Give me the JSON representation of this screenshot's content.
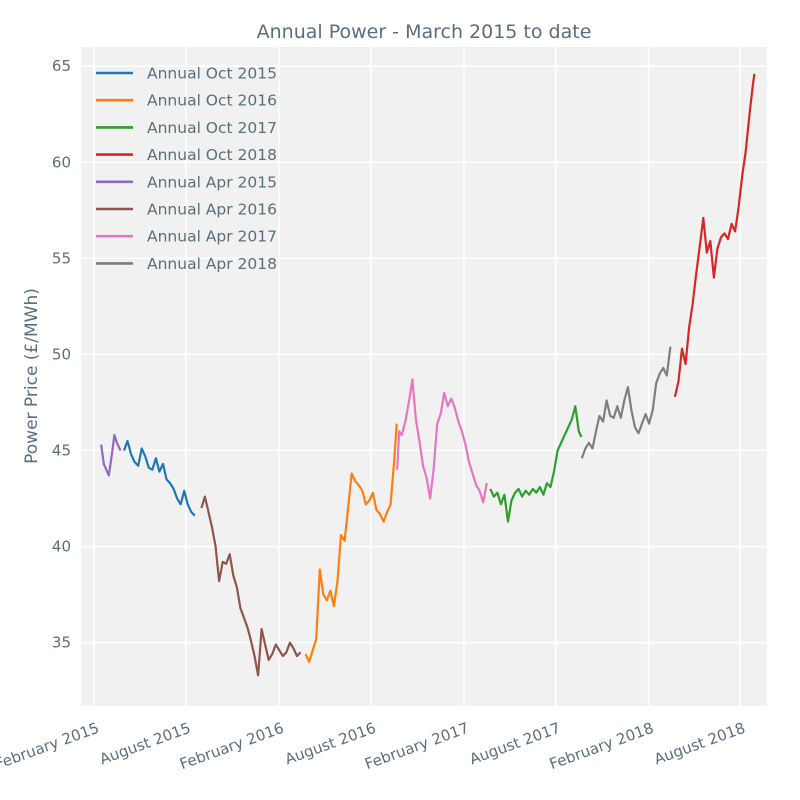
{
  "chart_data": {
    "type": "line",
    "title": "Annual Power - March 2015 to date",
    "xlabel": "",
    "ylabel": "Power Price (£/MWh)",
    "xlim": [
      "2015-01-06",
      "2018-09-23"
    ],
    "ylim": [
      31.7,
      66.0
    ],
    "x_ticks": [
      {
        "date": "2015-02-01",
        "label": "February 2015"
      },
      {
        "date": "2015-08-01",
        "label": "August 2015"
      },
      {
        "date": "2016-02-01",
        "label": "February 2016"
      },
      {
        "date": "2016-08-01",
        "label": "August 2016"
      },
      {
        "date": "2017-02-01",
        "label": "February 2017"
      },
      {
        "date": "2017-08-01",
        "label": "August 2017"
      },
      {
        "date": "2018-02-01",
        "label": "February 2018"
      },
      {
        "date": "2018-08-01",
        "label": "August 2018"
      }
    ],
    "y_ticks": [
      35,
      40,
      45,
      50,
      55,
      60,
      65
    ],
    "grid": true,
    "legend": "top-left",
    "series": [
      {
        "name": "Annual Oct 2015",
        "color": "#1f77b4",
        "points": [
          [
            "2015-04-01",
            45.0
          ],
          [
            "2015-04-08",
            45.5
          ],
          [
            "2015-04-15",
            44.8
          ],
          [
            "2015-04-22",
            44.4
          ],
          [
            "2015-04-29",
            44.2
          ],
          [
            "2015-05-06",
            45.1
          ],
          [
            "2015-05-13",
            44.7
          ],
          [
            "2015-05-20",
            44.1
          ],
          [
            "2015-05-27",
            44.0
          ],
          [
            "2015-06-03",
            44.6
          ],
          [
            "2015-06-10",
            43.9
          ],
          [
            "2015-06-17",
            44.3
          ],
          [
            "2015-06-24",
            43.5
          ],
          [
            "2015-07-01",
            43.3
          ],
          [
            "2015-07-08",
            43.0
          ],
          [
            "2015-07-15",
            42.5
          ],
          [
            "2015-07-22",
            42.2
          ],
          [
            "2015-07-29",
            42.9
          ],
          [
            "2015-08-05",
            42.2
          ],
          [
            "2015-08-12",
            41.8
          ],
          [
            "2015-08-19",
            41.6
          ]
        ]
      },
      {
        "name": "Annual Oct 2016",
        "color": "#ff7f0e",
        "points": [
          [
            "2016-03-25",
            34.4
          ],
          [
            "2016-04-01",
            34.0
          ],
          [
            "2016-04-08",
            34.6
          ],
          [
            "2016-04-15",
            35.2
          ],
          [
            "2016-04-22",
            38.8
          ],
          [
            "2016-04-29",
            37.5
          ],
          [
            "2016-05-06",
            37.2
          ],
          [
            "2016-05-13",
            37.7
          ],
          [
            "2016-05-20",
            36.9
          ],
          [
            "2016-05-27",
            38.2
          ],
          [
            "2016-06-03",
            40.6
          ],
          [
            "2016-06-10",
            40.3
          ],
          [
            "2016-06-17",
            42.0
          ],
          [
            "2016-06-24",
            43.8
          ],
          [
            "2016-07-01",
            43.4
          ],
          [
            "2016-07-08",
            43.2
          ],
          [
            "2016-07-15",
            42.9
          ],
          [
            "2016-07-22",
            42.2
          ],
          [
            "2016-07-29",
            42.4
          ],
          [
            "2016-08-05",
            42.8
          ],
          [
            "2016-08-12",
            41.9
          ],
          [
            "2016-08-19",
            41.7
          ],
          [
            "2016-08-26",
            41.3
          ],
          [
            "2016-09-02",
            41.8
          ],
          [
            "2016-09-09",
            42.2
          ],
          [
            "2016-09-16",
            44.5
          ],
          [
            "2016-09-21",
            46.4
          ]
        ]
      },
      {
        "name": "Annual Oct 2017",
        "color": "#2ca02c",
        "points": [
          [
            "2017-03-25",
            43.0
          ],
          [
            "2017-04-01",
            42.6
          ],
          [
            "2017-04-08",
            42.8
          ],
          [
            "2017-04-15",
            42.2
          ],
          [
            "2017-04-22",
            42.7
          ],
          [
            "2017-04-29",
            41.3
          ],
          [
            "2017-05-06",
            42.4
          ],
          [
            "2017-05-13",
            42.8
          ],
          [
            "2017-05-20",
            43.0
          ],
          [
            "2017-05-27",
            42.6
          ],
          [
            "2017-06-03",
            42.9
          ],
          [
            "2017-06-10",
            42.7
          ],
          [
            "2017-06-17",
            43.0
          ],
          [
            "2017-06-24",
            42.8
          ],
          [
            "2017-07-01",
            43.1
          ],
          [
            "2017-07-08",
            42.7
          ],
          [
            "2017-07-15",
            43.3
          ],
          [
            "2017-07-22",
            43.1
          ],
          [
            "2017-07-29",
            43.9
          ],
          [
            "2017-08-05",
            45.0
          ],
          [
            "2017-08-12",
            45.4
          ],
          [
            "2017-08-19",
            45.8
          ],
          [
            "2017-08-26",
            46.2
          ],
          [
            "2017-09-02",
            46.6
          ],
          [
            "2017-09-09",
            47.3
          ],
          [
            "2017-09-16",
            46.0
          ],
          [
            "2017-09-21",
            45.7
          ]
        ]
      },
      {
        "name": "Annual Oct 2018",
        "color": "#d62728",
        "points": [
          [
            "2018-03-25",
            47.8
          ],
          [
            "2018-04-01",
            48.6
          ],
          [
            "2018-04-08",
            50.3
          ],
          [
            "2018-04-15",
            49.5
          ],
          [
            "2018-04-22",
            51.4
          ],
          [
            "2018-04-29",
            52.6
          ],
          [
            "2018-05-06",
            54.2
          ],
          [
            "2018-05-13",
            55.6
          ],
          [
            "2018-05-20",
            57.1
          ],
          [
            "2018-05-27",
            55.3
          ],
          [
            "2018-06-03",
            55.9
          ],
          [
            "2018-06-10",
            54.0
          ],
          [
            "2018-06-17",
            55.5
          ],
          [
            "2018-06-24",
            56.1
          ],
          [
            "2018-07-01",
            56.3
          ],
          [
            "2018-07-08",
            56.0
          ],
          [
            "2018-07-15",
            56.8
          ],
          [
            "2018-07-22",
            56.4
          ],
          [
            "2018-07-29",
            57.7
          ],
          [
            "2018-08-05",
            59.3
          ],
          [
            "2018-08-12",
            60.6
          ],
          [
            "2018-08-19",
            62.4
          ],
          [
            "2018-08-26",
            64.0
          ],
          [
            "2018-08-29",
            64.6
          ]
        ]
      },
      {
        "name": "Annual Apr 2015",
        "color": "#9467bd",
        "points": [
          [
            "2015-02-15",
            45.3
          ],
          [
            "2015-02-20",
            44.3
          ],
          [
            "2015-02-25",
            44.0
          ],
          [
            "2015-03-02",
            43.7
          ],
          [
            "2015-03-08",
            44.8
          ],
          [
            "2015-03-13",
            45.8
          ],
          [
            "2015-03-18",
            45.4
          ],
          [
            "2015-03-25",
            45.0
          ]
        ]
      },
      {
        "name": "Annual Apr 2016",
        "color": "#8c564b",
        "points": [
          [
            "2015-09-01",
            42.0
          ],
          [
            "2015-09-08",
            42.6
          ],
          [
            "2015-09-15",
            41.8
          ],
          [
            "2015-09-22",
            41.0
          ],
          [
            "2015-09-29",
            40.0
          ],
          [
            "2015-10-06",
            38.2
          ],
          [
            "2015-10-13",
            39.2
          ],
          [
            "2015-10-20",
            39.1
          ],
          [
            "2015-10-27",
            39.6
          ],
          [
            "2015-11-03",
            38.5
          ],
          [
            "2015-11-10",
            37.9
          ],
          [
            "2015-11-17",
            36.8
          ],
          [
            "2015-11-24",
            36.3
          ],
          [
            "2015-12-01",
            35.8
          ],
          [
            "2015-12-08",
            35.1
          ],
          [
            "2015-12-15",
            34.3
          ],
          [
            "2015-12-22",
            33.3
          ],
          [
            "2015-12-29",
            35.7
          ],
          [
            "2016-01-05",
            34.9
          ],
          [
            "2016-01-12",
            34.1
          ],
          [
            "2016-01-19",
            34.4
          ],
          [
            "2016-01-26",
            34.9
          ],
          [
            "2016-02-02",
            34.6
          ],
          [
            "2016-02-09",
            34.3
          ],
          [
            "2016-02-16",
            34.5
          ],
          [
            "2016-02-23",
            35.0
          ],
          [
            "2016-03-01",
            34.7
          ],
          [
            "2016-03-08",
            34.3
          ],
          [
            "2016-03-15",
            34.5
          ]
        ]
      },
      {
        "name": "Annual Apr 2017",
        "color": "#e377c2",
        "points": [
          [
            "2016-09-22",
            44.0
          ],
          [
            "2016-09-26",
            46.0
          ],
          [
            "2016-10-01",
            45.8
          ],
          [
            "2016-10-08",
            46.5
          ],
          [
            "2016-10-15",
            47.5
          ],
          [
            "2016-10-22",
            48.7
          ],
          [
            "2016-10-29",
            46.6
          ],
          [
            "2016-11-05",
            45.5
          ],
          [
            "2016-11-12",
            44.2
          ],
          [
            "2016-11-19",
            43.6
          ],
          [
            "2016-11-26",
            42.5
          ],
          [
            "2016-12-03",
            44.0
          ],
          [
            "2016-12-10",
            46.4
          ],
          [
            "2016-12-17",
            46.9
          ],
          [
            "2016-12-24",
            48.0
          ],
          [
            "2016-12-31",
            47.3
          ],
          [
            "2017-01-07",
            47.7
          ],
          [
            "2017-01-14",
            47.2
          ],
          [
            "2017-01-21",
            46.5
          ],
          [
            "2017-01-28",
            46.0
          ],
          [
            "2017-02-04",
            45.3
          ],
          [
            "2017-02-11",
            44.4
          ],
          [
            "2017-02-18",
            43.8
          ],
          [
            "2017-02-25",
            43.2
          ],
          [
            "2017-03-04",
            42.9
          ],
          [
            "2017-03-11",
            42.3
          ],
          [
            "2017-03-18",
            43.3
          ]
        ]
      },
      {
        "name": "Annual Apr 2018",
        "color": "#7f7f7f",
        "points": [
          [
            "2017-09-22",
            44.6
          ],
          [
            "2017-09-29",
            45.1
          ],
          [
            "2017-10-06",
            45.4
          ],
          [
            "2017-10-13",
            45.1
          ],
          [
            "2017-10-20",
            46.0
          ],
          [
            "2017-10-27",
            46.8
          ],
          [
            "2017-11-03",
            46.5
          ],
          [
            "2017-11-10",
            47.6
          ],
          [
            "2017-11-17",
            46.8
          ],
          [
            "2017-11-24",
            46.7
          ],
          [
            "2017-12-01",
            47.3
          ],
          [
            "2017-12-08",
            46.7
          ],
          [
            "2017-12-15",
            47.6
          ],
          [
            "2017-12-22",
            48.3
          ],
          [
            "2017-12-29",
            47.1
          ],
          [
            "2018-01-05",
            46.2
          ],
          [
            "2018-01-12",
            45.9
          ],
          [
            "2018-01-19",
            46.4
          ],
          [
            "2018-01-26",
            46.9
          ],
          [
            "2018-02-02",
            46.4
          ],
          [
            "2018-02-09",
            47.1
          ],
          [
            "2018-02-16",
            48.5
          ],
          [
            "2018-02-23",
            49.0
          ],
          [
            "2018-03-02",
            49.3
          ],
          [
            "2018-03-09",
            48.9
          ],
          [
            "2018-03-16",
            50.4
          ]
        ]
      }
    ]
  }
}
